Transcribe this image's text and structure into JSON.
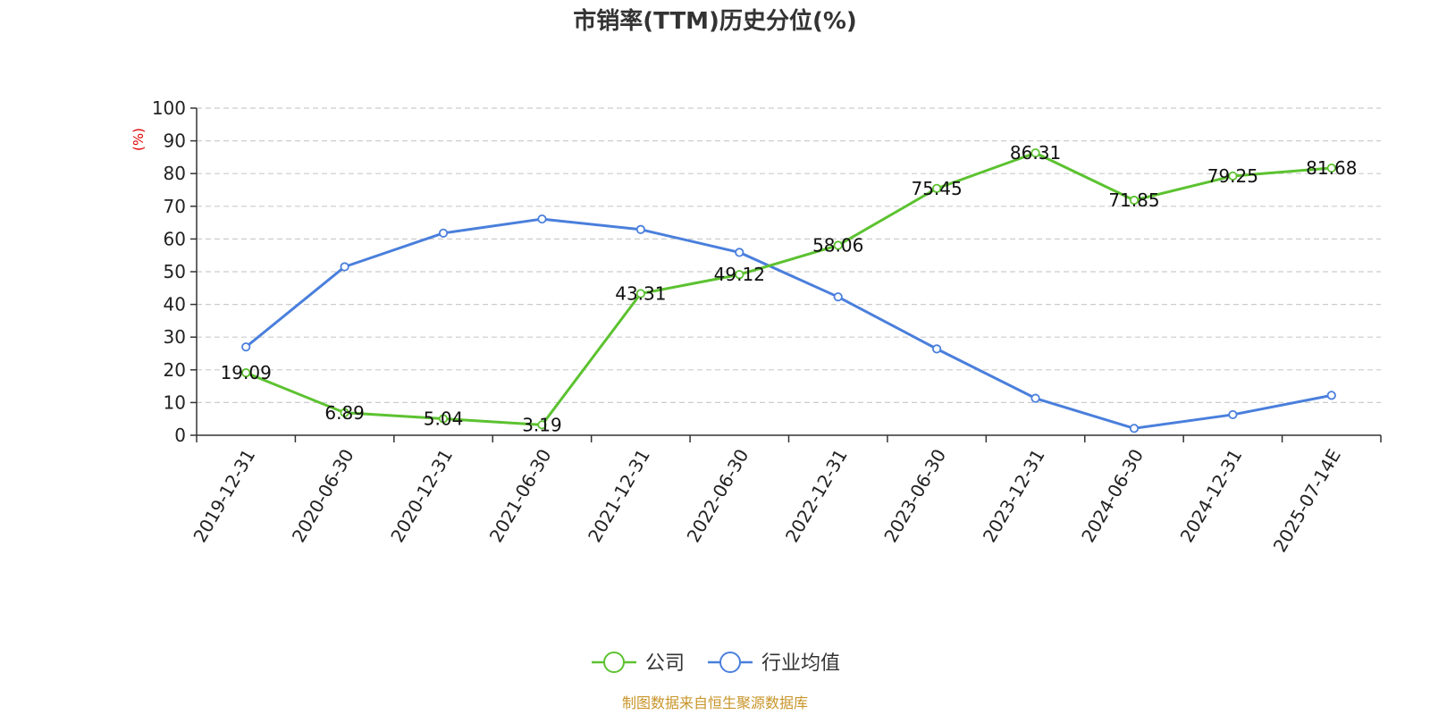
{
  "chart_data": {
    "type": "line",
    "title": "市销率(TTM)历史分位(%)",
    "ylabel": "(%)",
    "xlabel": "",
    "ylim": [
      0,
      100
    ],
    "yticks": [
      0,
      10,
      20,
      30,
      40,
      50,
      60,
      70,
      80,
      90,
      100
    ],
    "categories": [
      "2019-12-31",
      "2020-06-30",
      "2020-12-31",
      "2021-06-30",
      "2021-12-31",
      "2022-06-30",
      "2022-12-31",
      "2023-06-30",
      "2023-12-31",
      "2024-06-30",
      "2024-12-31",
      "2025-07-14E"
    ],
    "grid": true,
    "legend_position": "bottom-center",
    "series": [
      {
        "name": "公司",
        "color": "#5cc230",
        "values": [
          19.09,
          6.89,
          5.04,
          3.19,
          43.31,
          49.12,
          58.06,
          75.45,
          86.31,
          71.85,
          79.25,
          81.68
        ],
        "labels": [
          "19.09",
          "6.89",
          "5.04",
          "3.19",
          "43.31",
          "49.12",
          "58.06",
          "75.45",
          "86.31",
          "71.85",
          "79.25",
          "81.68"
        ]
      },
      {
        "name": "行业均值",
        "color": "#4a7fdc",
        "values": [
          27.0,
          51.5,
          61.8,
          66.1,
          62.9,
          55.9,
          42.3,
          26.4,
          11.3,
          2.1,
          6.3,
          12.2
        ]
      }
    ],
    "source": "制图数据来自恒生聚源数据库"
  }
}
